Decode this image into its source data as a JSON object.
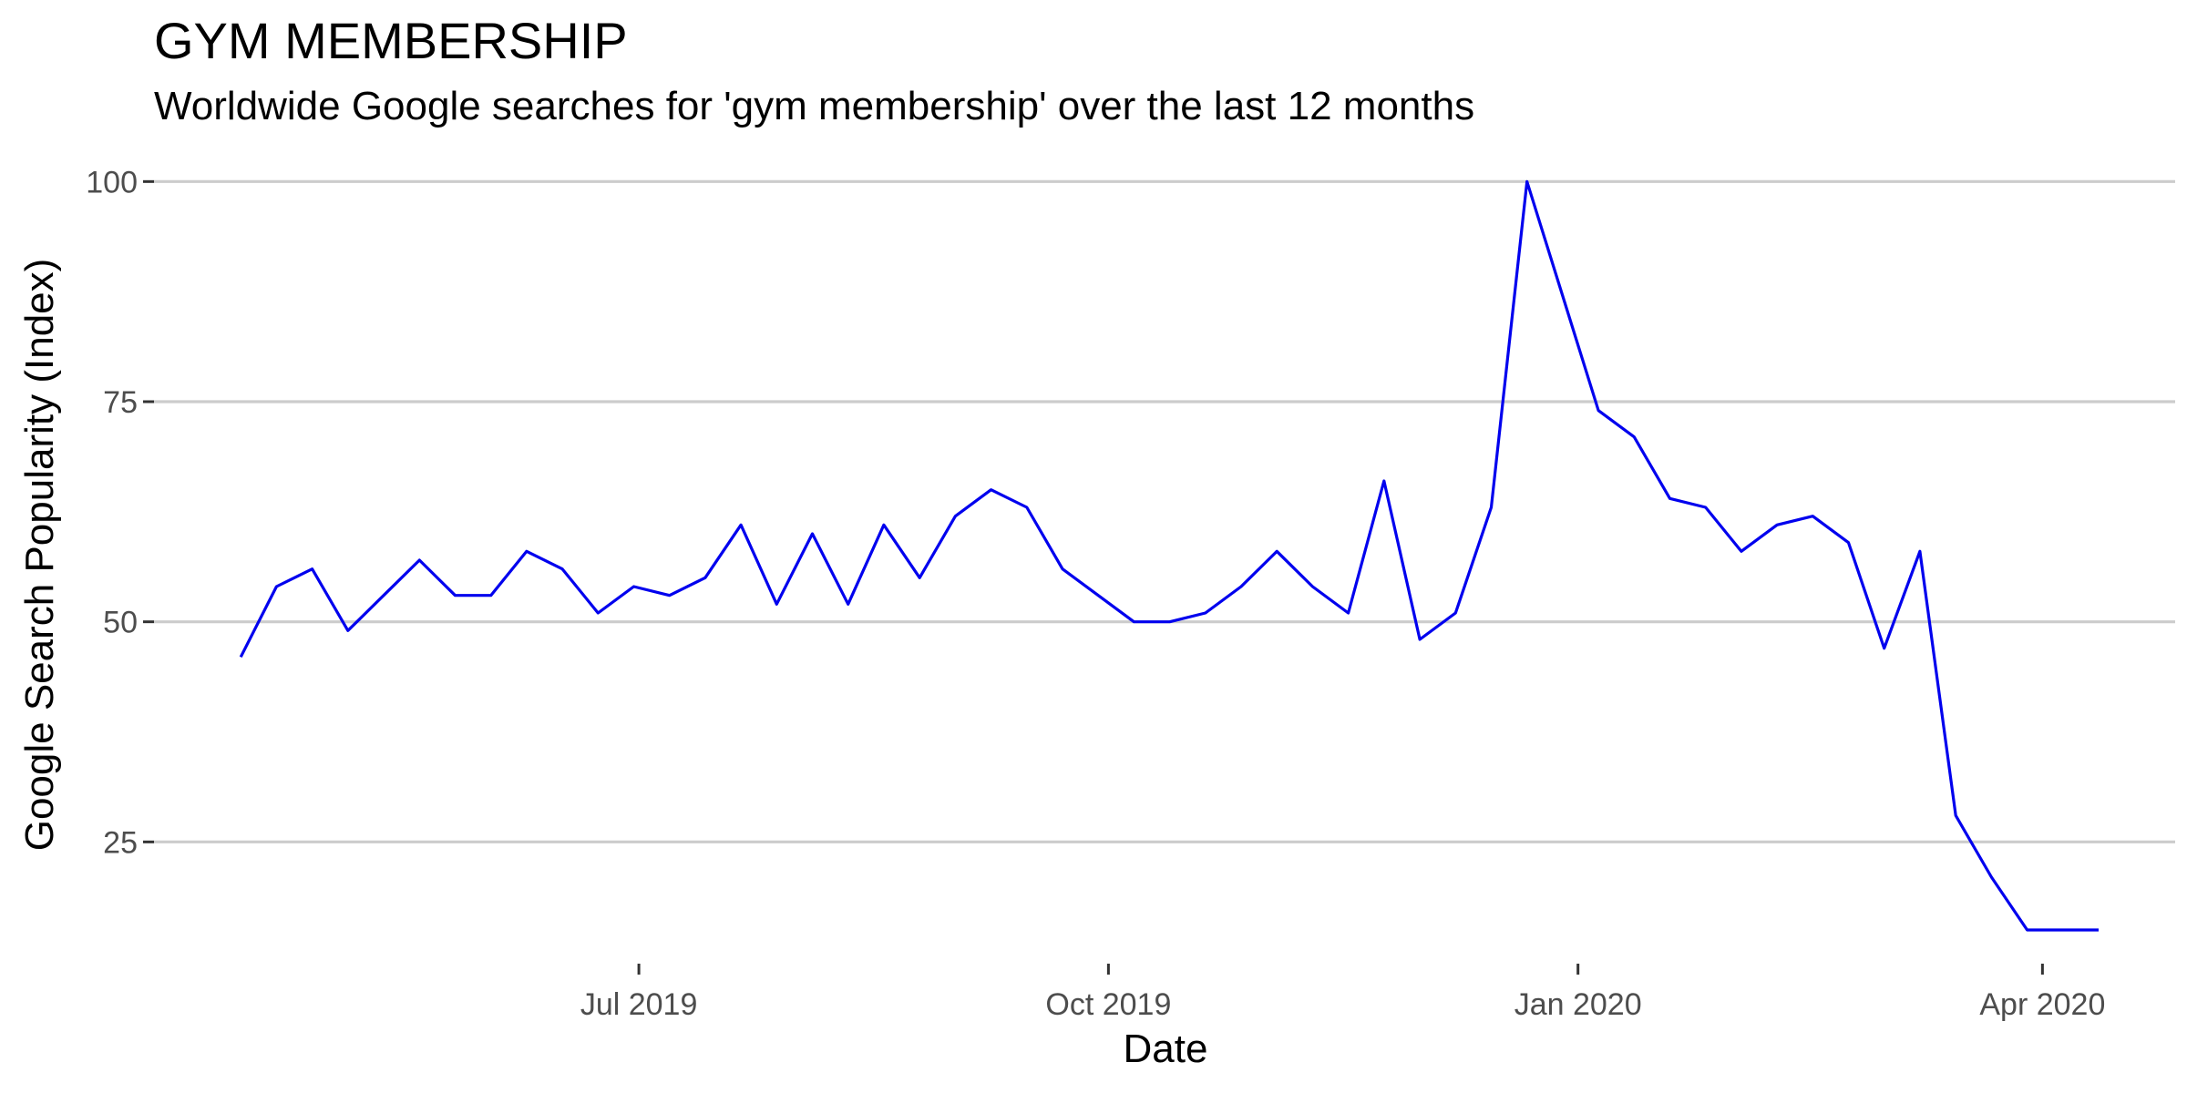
{
  "chart_data": {
    "type": "line",
    "title": "GYM MEMBERSHIP",
    "subtitle": "Worldwide Google searches for 'gym membership' over the last 12 months",
    "xlabel": "Date",
    "ylabel": "Google Search Popularity (Index)",
    "xlim": [
      "2019-03-28",
      "2020-04-27"
    ],
    "ylim": [
      12,
      102
    ],
    "x_ticks": [
      {
        "date": "2019-07-01",
        "label": "Jul 2019"
      },
      {
        "date": "2019-10-01",
        "label": "Oct 2019"
      },
      {
        "date": "2020-01-01",
        "label": "Jan 2020"
      },
      {
        "date": "2020-04-01",
        "label": "Apr 2020"
      }
    ],
    "y_ticks": [
      25,
      50,
      75,
      100
    ],
    "grid": "horizontal major",
    "legend": "none",
    "line_color": "#0000ee",
    "x": [
      "2019-04-14",
      "2019-04-21",
      "2019-04-28",
      "2019-05-05",
      "2019-05-12",
      "2019-05-19",
      "2019-05-26",
      "2019-06-02",
      "2019-06-09",
      "2019-06-16",
      "2019-06-23",
      "2019-06-30",
      "2019-07-07",
      "2019-07-14",
      "2019-07-21",
      "2019-07-28",
      "2019-08-04",
      "2019-08-11",
      "2019-08-18",
      "2019-08-25",
      "2019-09-01",
      "2019-09-08",
      "2019-09-15",
      "2019-09-22",
      "2019-09-29",
      "2019-10-06",
      "2019-10-13",
      "2019-10-20",
      "2019-10-27",
      "2019-11-03",
      "2019-11-10",
      "2019-11-17",
      "2019-11-24",
      "2019-12-01",
      "2019-12-08",
      "2019-12-15",
      "2019-12-22",
      "2019-12-29",
      "2020-01-05",
      "2020-01-12",
      "2020-01-19",
      "2020-01-26",
      "2020-02-02",
      "2020-02-09",
      "2020-02-16",
      "2020-02-23",
      "2020-03-01",
      "2020-03-08",
      "2020-03-15",
      "2020-03-22",
      "2020-03-29",
      "2020-04-05",
      "2020-04-12"
    ],
    "y": [
      46,
      54,
      56,
      49,
      53,
      57,
      53,
      53,
      58,
      56,
      51,
      54,
      53,
      55,
      61,
      52,
      60,
      52,
      61,
      55,
      62,
      65,
      63,
      56,
      53,
      50,
      50,
      51,
      54,
      58,
      54,
      51,
      66,
      48,
      51,
      63,
      100,
      87,
      74,
      71,
      64,
      63,
      58,
      61,
      62,
      59,
      47,
      58,
      28,
      21,
      15,
      15,
      15
    ]
  }
}
